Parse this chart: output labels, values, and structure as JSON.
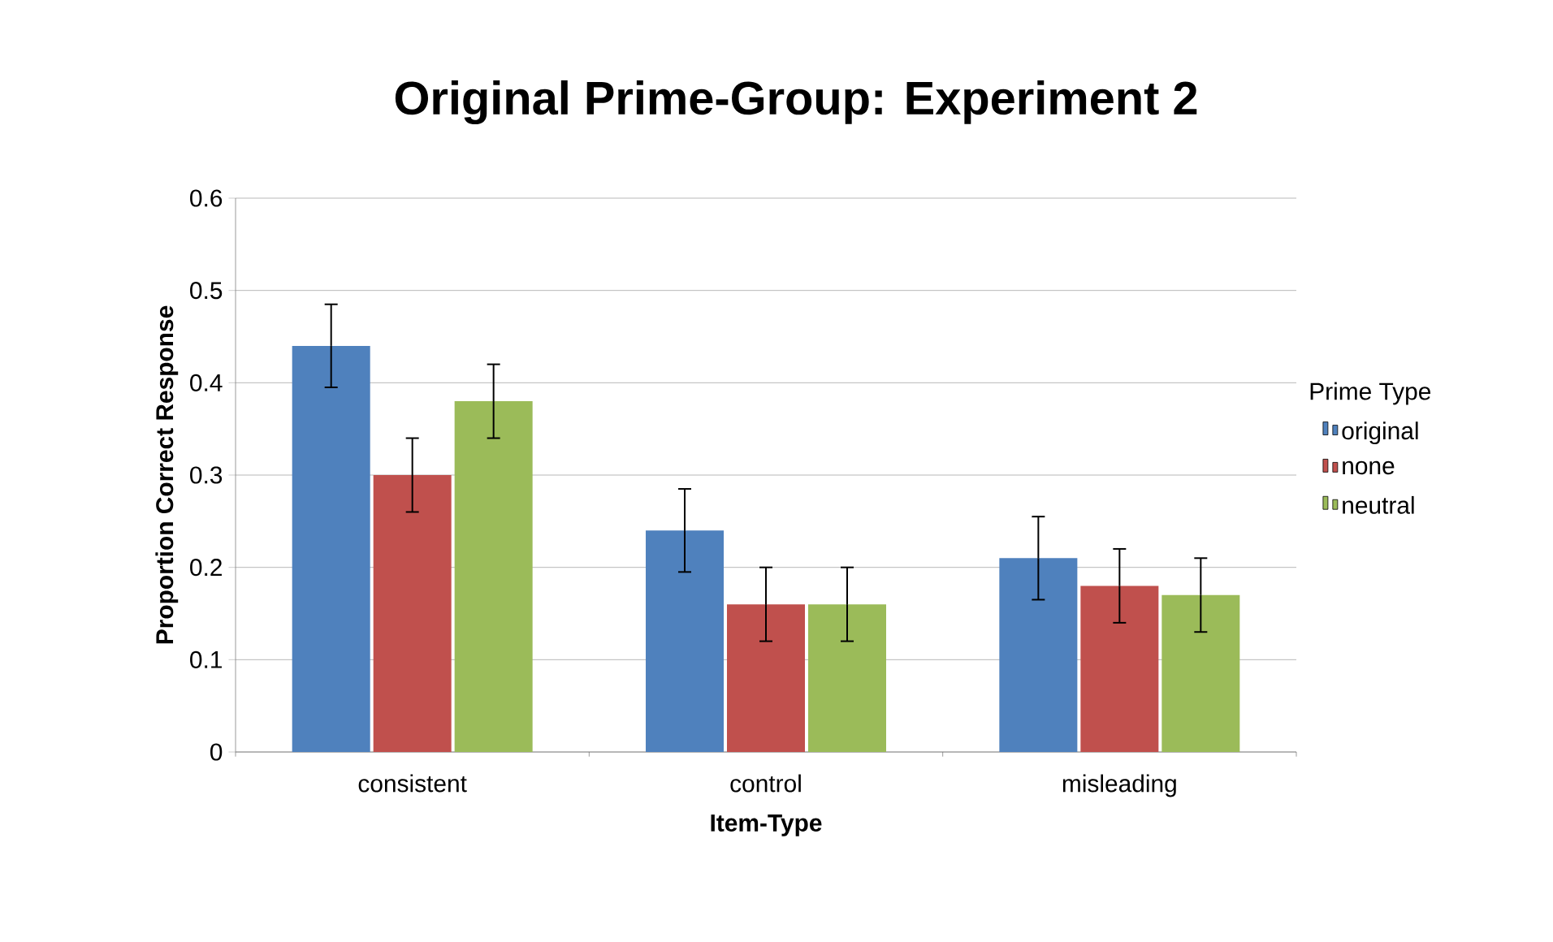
{
  "chart_data": {
    "type": "bar",
    "title": "Original Prime-Group: Experiment 2",
    "xlabel": "Item-Type",
    "ylabel": "Proportion Correct Response",
    "legend_title": "Prime Type",
    "categories": [
      "consistent",
      "control",
      "misleading"
    ],
    "series": [
      {
        "name": "original",
        "color": "#4f81bd",
        "values": [
          0.44,
          0.24,
          0.21
        ],
        "errors": [
          0.045,
          0.045,
          0.045
        ]
      },
      {
        "name": "none",
        "color": "#c0504d",
        "values": [
          0.3,
          0.16,
          0.18
        ],
        "errors": [
          0.04,
          0.04,
          0.04
        ]
      },
      {
        "name": "neutral",
        "color": "#9bbb59",
        "values": [
          0.38,
          0.16,
          0.17
        ],
        "errors": [
          0.04,
          0.04,
          0.04
        ]
      }
    ],
    "ylim": [
      0,
      0.6
    ],
    "yticks": [
      0,
      0.1,
      0.2,
      0.3,
      0.4,
      0.5,
      0.6
    ],
    "grid": "y",
    "legend": "right"
  }
}
